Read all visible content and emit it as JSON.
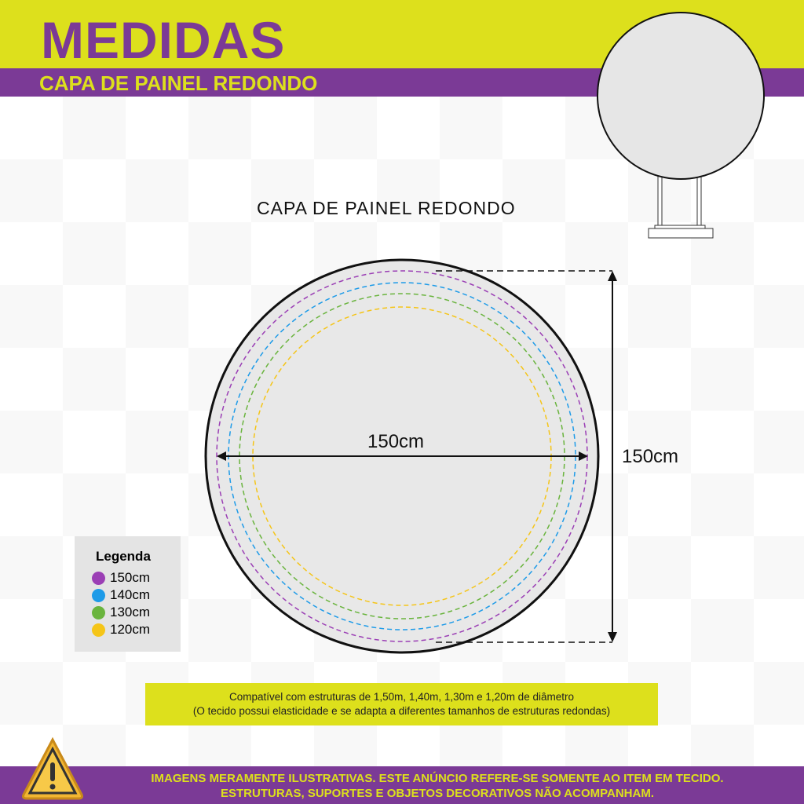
{
  "header": {
    "title": "MEDIDAS",
    "subtitle": "CAPA DE PAINEL REDONDO"
  },
  "diagram": {
    "caption": "CAPA DE PAINEL REDONDO",
    "width_label": "150cm",
    "height_label": "150cm"
  },
  "legend": {
    "title": "Legenda",
    "items": [
      {
        "label": "150cm",
        "color": "#9b3fb5"
      },
      {
        "label": "140cm",
        "color": "#1e9be8"
      },
      {
        "label": "130cm",
        "color": "#6ab43e"
      },
      {
        "label": "120cm",
        "color": "#f5c518"
      }
    ]
  },
  "note": {
    "line1": "Compatível com estruturas de 1,50m, 1,40m, 1,30m e 1,20m de diâmetro",
    "line2": "(O tecido possui elasticidade e se adapta a diferentes tamanhos de estruturas redondas)"
  },
  "footer": {
    "line1": "IMAGENS MERAMENTE ILUSTRATIVAS. ESTE ANÚNCIO REFERE-SE SOMENTE AO ITEM EM TECIDO.",
    "line2": "ESTRUTURAS, SUPORTES E OBJETOS DECORATIVOS NÃO ACOMPANHAM.",
    "icon": "warning-icon"
  },
  "colors": {
    "brand_yellow": "#dde01c",
    "brand_purple": "#7b3a96"
  }
}
